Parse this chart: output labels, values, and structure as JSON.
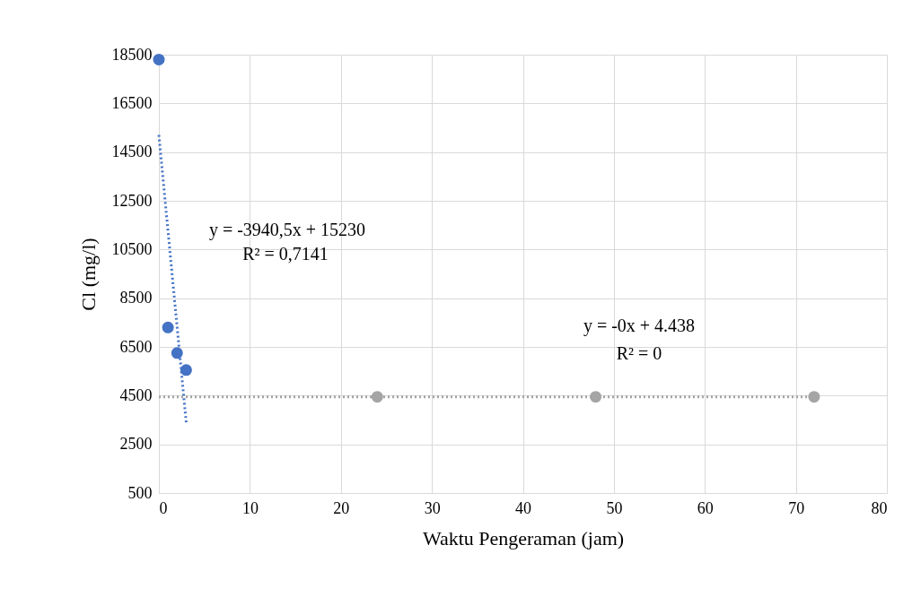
{
  "chart_data": {
    "type": "scatter",
    "xlabel": "Waktu Pengeraman (jam)",
    "ylabel": "Cl (mg/l)",
    "xlim": [
      0,
      80
    ],
    "xticks": [
      0,
      10,
      20,
      30,
      40,
      50,
      60,
      70,
      80
    ],
    "ylim": [
      500,
      18500
    ],
    "yticks": [
      500,
      2500,
      4500,
      6500,
      8500,
      10500,
      12500,
      14500,
      16500,
      18500
    ],
    "grid": true,
    "marker": "circle",
    "series": [
      {
        "color": "#4472c4",
        "x": [
          0,
          1,
          2,
          3
        ],
        "values": [
          18300,
          7300,
          6250,
          5550
        ]
      },
      {
        "color": "#a5a5a5",
        "x": [
          24,
          48,
          72
        ],
        "values": [
          4450,
          4450,
          4450
        ]
      },
      {
        "type": "line",
        "line_style": "dotted",
        "marker": "none",
        "color": "#4472c4",
        "x": [
          0,
          3
        ],
        "values": [
          15200,
          3400
        ]
      },
      {
        "type": "line",
        "line_style": "dotted",
        "marker": "none",
        "color": "#a5a5a5",
        "x": [
          0,
          72
        ],
        "values": [
          4450,
          4450
        ]
      }
    ],
    "annotations": [
      "y = -3940,5x + 15230",
      "R² = 0,7141",
      "y = -0x + 4.438",
      "R² = 0"
    ]
  }
}
